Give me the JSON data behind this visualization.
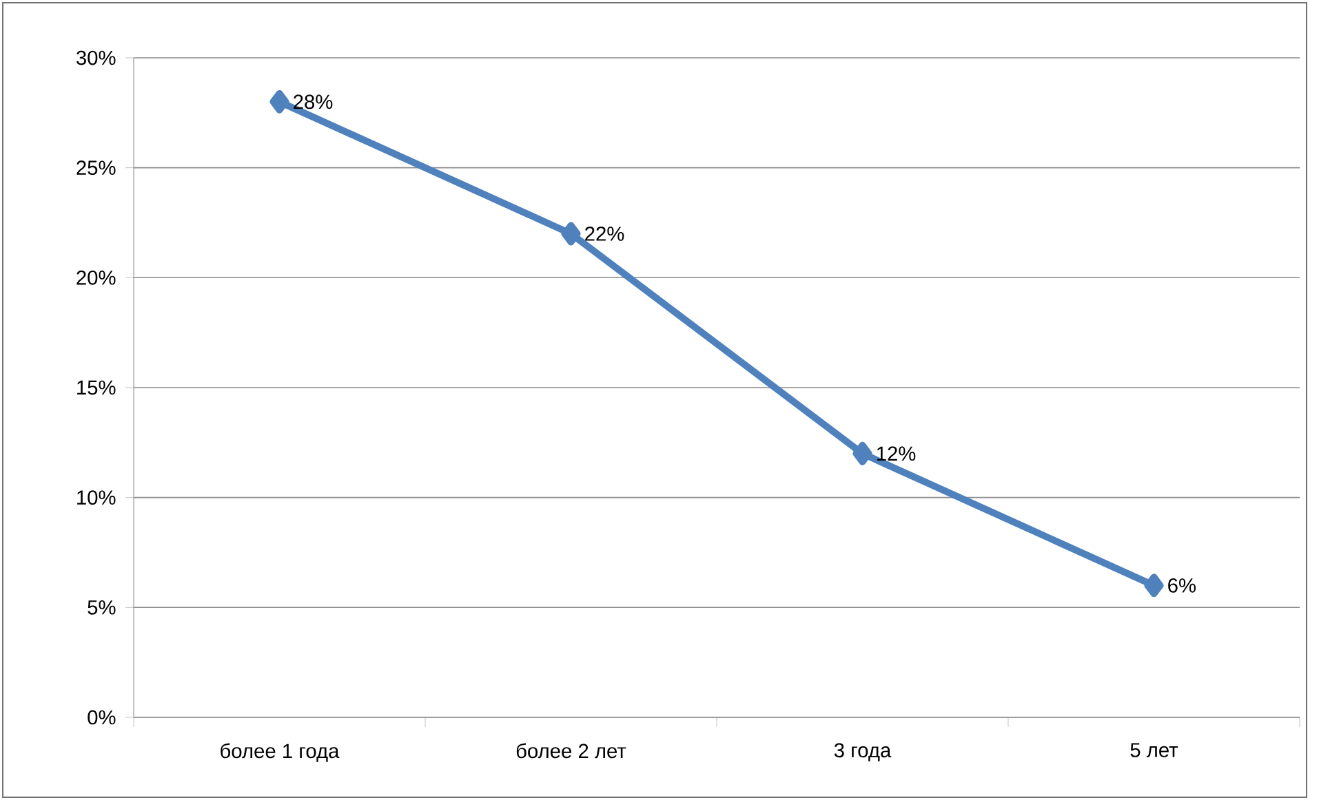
{
  "chart_data": {
    "type": "line",
    "categories": [
      "более 1 года",
      "более 2 лет",
      "3 года",
      "5 лет"
    ],
    "series": [
      {
        "color": "#4f81bd",
        "values": [
          28,
          22,
          12,
          6
        ],
        "value_labels": [
          "28%",
          "22%",
          "12%",
          "6%"
        ]
      }
    ],
    "ylim": [
      0,
      30
    ],
    "yticks": [
      {
        "value": 0,
        "label": "0%"
      },
      {
        "value": 5,
        "label": "5%"
      },
      {
        "value": 10,
        "label": "10%"
      },
      {
        "value": 15,
        "label": "15%"
      },
      {
        "value": 20,
        "label": "20%"
      },
      {
        "value": 25,
        "label": "25%"
      },
      {
        "value": 30,
        "label": "30%"
      }
    ],
    "grid": "y",
    "marker": "diamond",
    "line_style": "solid"
  }
}
